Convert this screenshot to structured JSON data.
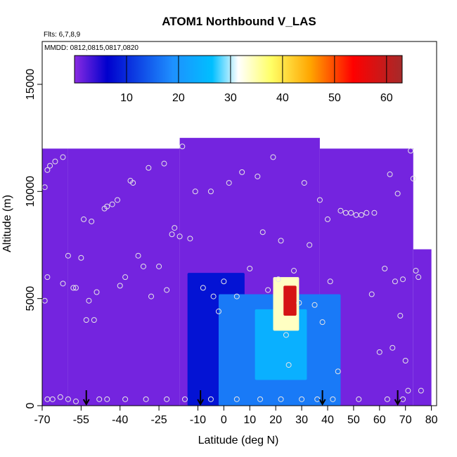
{
  "chart_data": {
    "type": "heatmap",
    "title": "ATOM1 Northbound V_LAS",
    "subtitle_flights": "Flts: 6,7,8,9",
    "subtitle_dates": "MMDD: 0812,0815,0817,0820",
    "xlabel": "Latitude (deg N)",
    "ylabel": "Altitude (m)",
    "xlim": [
      -70,
      82
    ],
    "ylim": [
      0,
      17000
    ],
    "x_ticks": [
      -70,
      -55,
      -40,
      -25,
      -10,
      0,
      10,
      20,
      30,
      40,
      50,
      60,
      70,
      80
    ],
    "x_tick_labels": [
      "-70",
      "-55",
      "-40",
      "-25",
      "-10",
      "0",
      "10",
      "20",
      "30",
      "40",
      "50",
      "60",
      "70",
      "80"
    ],
    "y_ticks": [
      0,
      5000,
      10000,
      15000
    ],
    "y_tick_labels": [
      "0",
      "5000",
      "10000",
      "15000"
    ],
    "colorbar": {
      "range": [
        0,
        63
      ],
      "ticks": [
        10,
        20,
        30,
        40,
        50,
        60
      ],
      "tick_labels": [
        "10",
        "20",
        "30",
        "40",
        "50",
        "60"
      ],
      "colors": [
        "#8a2be2",
        "#0000cd",
        "#1e90ff",
        "#00bfff",
        "#ffffff",
        "#ffff66",
        "#ffa500",
        "#ff0000",
        "#a52a2a"
      ],
      "color_positions": [
        0,
        0.1,
        0.3,
        0.42,
        0.5,
        0.6,
        0.72,
        0.85,
        1.0
      ]
    },
    "background_value": 1,
    "coverage": [
      {
        "x0": -70,
        "x1": -60,
        "top": 12000
      },
      {
        "x0": -60,
        "x1": -17,
        "top": 12000
      },
      {
        "x0": -17,
        "x1": 37,
        "top": 12500
      },
      {
        "x0": 37,
        "x1": 73,
        "top": 12000
      },
      {
        "x0": 73,
        "x1": 80,
        "top": 7300
      }
    ],
    "features": [
      {
        "name": "southern tropics low-value column",
        "lat0": -14,
        "lat1": 8,
        "alt0": 0,
        "alt1": 6200,
        "value": 8
      },
      {
        "name": "outflow layer",
        "lat0": -2,
        "lat1": 45,
        "alt0": 0,
        "alt1": 5200,
        "value": 17
      },
      {
        "name": "enhanced plume core",
        "lat0": 12,
        "lat1": 32,
        "alt0": 1200,
        "alt1": 4500,
        "value": 24
      },
      {
        "name": "upper plume",
        "lat0": 19,
        "lat1": 29,
        "alt0": 3500,
        "alt1": 6000,
        "value": 34
      },
      {
        "name": "plume maximum",
        "lat0": 23,
        "lat1": 28,
        "alt0": 4200,
        "alt1": 5600,
        "value": 58
      }
    ],
    "sample_points": [
      [
        -68,
        300
      ],
      [
        -69,
        4900
      ],
      [
        -68,
        6000
      ],
      [
        -69,
        10200
      ],
      [
        -68,
        11000
      ],
      [
        -67,
        11200
      ],
      [
        -65,
        11400
      ],
      [
        -62,
        11600
      ],
      [
        -62,
        5700
      ],
      [
        -60,
        7000
      ],
      [
        -58,
        5500
      ],
      [
        -57,
        5500
      ],
      [
        -55,
        6900
      ],
      [
        -54,
        8700
      ],
      [
        -53,
        4000
      ],
      [
        -52,
        4900
      ],
      [
        -51,
        8600
      ],
      [
        -50,
        4000
      ],
      [
        -49,
        5300
      ],
      [
        -48,
        300
      ],
      [
        -46,
        9200
      ],
      [
        -45,
        9300
      ],
      [
        -43,
        9400
      ],
      [
        -41,
        9600
      ],
      [
        -40,
        5600
      ],
      [
        -38,
        6000
      ],
      [
        -36,
        10500
      ],
      [
        -35,
        10400
      ],
      [
        -33,
        7000
      ],
      [
        -31,
        6500
      ],
      [
        -29,
        11100
      ],
      [
        -28,
        5100
      ],
      [
        -25,
        6500
      ],
      [
        -23,
        11300
      ],
      [
        -22,
        5400
      ],
      [
        -20,
        8000
      ],
      [
        -19,
        8300
      ],
      [
        -17,
        7900
      ],
      [
        -16,
        12100
      ],
      [
        -13,
        7800
      ],
      [
        -11,
        10000
      ],
      [
        -8,
        5500
      ],
      [
        -5,
        10000
      ],
      [
        -4,
        5100
      ],
      [
        -2,
        4400
      ],
      [
        0,
        5800
      ],
      [
        2,
        10400
      ],
      [
        5,
        5100
      ],
      [
        7,
        10900
      ],
      [
        10,
        6400
      ],
      [
        13,
        10700
      ],
      [
        15,
        8100
      ],
      [
        17,
        5400
      ],
      [
        19,
        11600
      ],
      [
        21,
        5900
      ],
      [
        22,
        7700
      ],
      [
        24,
        3300
      ],
      [
        25,
        1900
      ],
      [
        27,
        6300
      ],
      [
        29,
        4800
      ],
      [
        31,
        10400
      ],
      [
        33,
        7500
      ],
      [
        35,
        4700
      ],
      [
        37,
        9600
      ],
      [
        38,
        3900
      ],
      [
        40,
        8700
      ],
      [
        41,
        5800
      ],
      [
        44,
        1600
      ],
      [
        45,
        9100
      ],
      [
        47,
        9000
      ],
      [
        49,
        9000
      ],
      [
        51,
        8900
      ],
      [
        53,
        8900
      ],
      [
        55,
        9000
      ],
      [
        57,
        5200
      ],
      [
        58,
        9000
      ],
      [
        60,
        2500
      ],
      [
        62,
        6400
      ],
      [
        64,
        10800
      ],
      [
        65,
        2700
      ],
      [
        66,
        5800
      ],
      [
        67,
        9900
      ],
      [
        68,
        4200
      ],
      [
        69,
        5900
      ],
      [
        70,
        2100
      ],
      [
        71,
        700
      ],
      [
        72,
        11900
      ],
      [
        73,
        10600
      ],
      [
        74,
        6300
      ],
      [
        75,
        6000
      ],
      [
        76,
        700
      ],
      [
        -66,
        300
      ],
      [
        -63,
        400
      ],
      [
        -60,
        300
      ],
      [
        -57,
        200
      ],
      [
        -45,
        300
      ],
      [
        -38,
        300
      ],
      [
        -30,
        300
      ],
      [
        -22,
        300
      ],
      [
        -15,
        300
      ],
      [
        -5,
        300
      ],
      [
        5,
        300
      ],
      [
        14,
        300
      ],
      [
        22,
        300
      ],
      [
        30,
        300
      ],
      [
        36,
        300
      ],
      [
        42,
        300
      ],
      [
        52,
        300
      ],
      [
        63,
        300
      ],
      [
        69,
        300
      ]
    ],
    "marker_latitudes": [
      -53,
      -9,
      38,
      67
    ],
    "grid": false,
    "legend": "colorbar top-inset"
  }
}
